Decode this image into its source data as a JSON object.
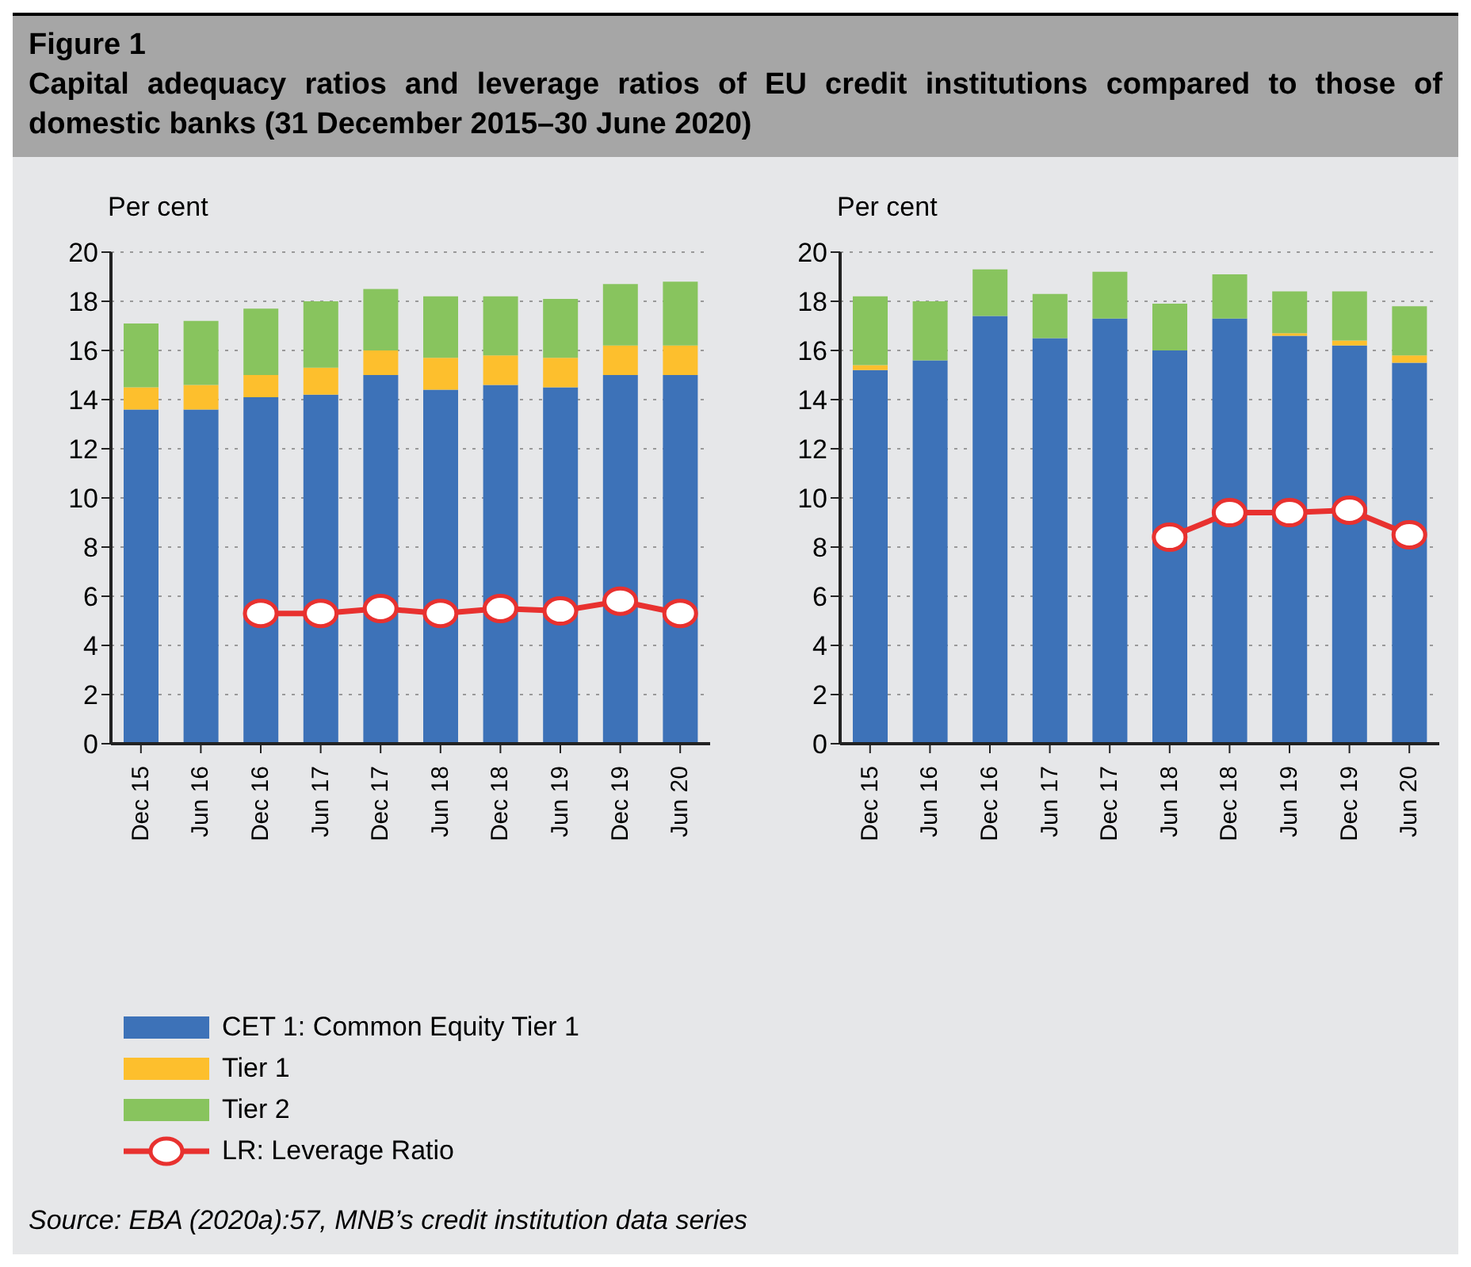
{
  "chart_data": [
    {
      "type": "bar",
      "title": "Figure 1",
      "subtitle": "Capital adequacy ratios and leverage ratios of EU credit institutions compared to those of domestic banks (31 December 2015–30 June 2020)",
      "ylabel": "Per cent",
      "categories": [
        "Dec 15",
        "Jun 16",
        "Dec 16",
        "Jun 17",
        "Dec 17",
        "Jun 18",
        "Dec 18",
        "Jun 19",
        "Dec 19",
        "Jun 20"
      ],
      "stacked": true,
      "ylim": [
        0,
        20
      ],
      "yticks": [
        0,
        2,
        4,
        6,
        8,
        10,
        12,
        14,
        16,
        18,
        20
      ],
      "grid": "y",
      "legend": "bottom",
      "marker": "circle",
      "series": [
        {
          "name": "CET 1: Common Equity Tier 1",
          "color": "#3d72b8",
          "values": [
            13.6,
            13.6,
            14.1,
            14.2,
            15.0,
            14.4,
            14.6,
            14.5,
            15.0,
            15.0
          ]
        },
        {
          "name": "Tier 1",
          "color": "#fdbf2d",
          "values": [
            0.9,
            1.0,
            0.9,
            1.1,
            1.0,
            1.3,
            1.2,
            1.2,
            1.2,
            1.2
          ]
        },
        {
          "name": "Tier 2",
          "color": "#88c45e",
          "values": [
            2.6,
            2.6,
            2.7,
            2.7,
            2.5,
            2.5,
            2.4,
            2.4,
            2.5,
            2.6
          ]
        },
        {
          "name": "LR: Leverage Ratio",
          "type": "line",
          "color": "#e8312f",
          "values": [
            null,
            null,
            5.3,
            5.3,
            5.5,
            5.3,
            5.5,
            5.4,
            5.8,
            5.3
          ]
        }
      ]
    },
    {
      "type": "bar",
      "ylabel": "Per cent",
      "categories": [
        "Dec 15",
        "Jun 16",
        "Dec 16",
        "Jun 17",
        "Dec 17",
        "Jun 18",
        "Dec 18",
        "Jun 19",
        "Dec 19",
        "Jun 20"
      ],
      "stacked": true,
      "ylim": [
        0,
        20
      ],
      "yticks": [
        0,
        2,
        4,
        6,
        8,
        10,
        12,
        14,
        16,
        18,
        20
      ],
      "grid": "y",
      "marker": "circle",
      "annotations": [
        "Source: EBA (2020a):57, MNB’s credit institution data series"
      ],
      "series": [
        {
          "color": "#3d72b8",
          "values": [
            15.2,
            15.6,
            17.4,
            16.5,
            17.3,
            16.0,
            17.3,
            16.6,
            16.2,
            15.5
          ]
        },
        {
          "color": "#fdbf2d",
          "values": [
            0.2,
            0,
            0,
            0,
            0,
            0,
            0,
            0.1,
            0.2,
            0.3
          ]
        },
        {
          "color": "#88c45e",
          "values": [
            2.8,
            2.4,
            1.9,
            1.8,
            1.9,
            1.9,
            1.8,
            1.7,
            2.0,
            2.0
          ]
        },
        {
          "type": "line",
          "color": "#e8312f",
          "values": [
            null,
            null,
            null,
            null,
            null,
            8.4,
            9.4,
            9.4,
            9.5,
            8.5
          ]
        }
      ]
    }
  ]
}
